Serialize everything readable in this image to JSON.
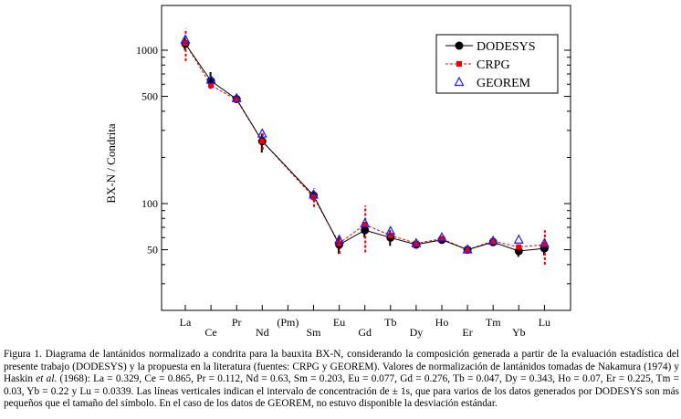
{
  "chart_data": {
    "type": "line",
    "ylabel": "BX-N / Condrita",
    "yscale": "log",
    "ylim": [
      20,
      2000
    ],
    "yticks": [
      {
        "value": 1000,
        "label": "1000"
      },
      {
        "value": 500,
        "label": "500"
      },
      {
        "value": 100,
        "label": "100"
      },
      {
        "value": 50,
        "label": "50"
      }
    ],
    "categories": [
      "La",
      "Ce",
      "Pr",
      "Nd",
      "(Pm)",
      "Sm",
      "Eu",
      "Gd",
      "Tb",
      "Dy",
      "Ho",
      "Er",
      "Tm",
      "Yb",
      "Lu"
    ],
    "legend_position": "top-right",
    "series": [
      {
        "name": "DODESYS",
        "style": "solid line, black filled circles",
        "color": "#000000",
        "values": [
          1100,
          630,
          480,
          255,
          null,
          113,
          54,
          67,
          60,
          54,
          58,
          50,
          56,
          49,
          51
        ],
        "err_low": [
          1000,
          560,
          455,
          215,
          null,
          105,
          47,
          60,
          53,
          null,
          null,
          null,
          null,
          45,
          46
        ],
        "err_high": [
          1200,
          720,
          505,
          285,
          null,
          121,
          61,
          74,
          67,
          null,
          null,
          null,
          null,
          53,
          56
        ]
      },
      {
        "name": "CRPG",
        "style": "dashed red line, red filled squares",
        "color": "#ee0000",
        "values": [
          1110,
          590,
          475,
          255,
          null,
          110,
          55,
          73,
          62,
          55,
          59,
          50,
          57,
          52,
          54
        ],
        "err_low": [
          850,
          null,
          null,
          225,
          null,
          95,
          47,
          48,
          null,
          null,
          null,
          null,
          null,
          null,
          40
        ],
        "err_high": [
          1380,
          null,
          null,
          290,
          null,
          126,
          62,
          97,
          null,
          null,
          null,
          null,
          null,
          null,
          67
        ]
      },
      {
        "name": "GEOREM",
        "style": "blue open triangles",
        "color": "#1a1aff",
        "values": [
          1170,
          640,
          485,
          285,
          null,
          114,
          58,
          74,
          66,
          55,
          60,
          50,
          57,
          58,
          55
        ]
      }
    ]
  },
  "caption": {
    "part1": "Figura 1. Diagrama de lantánidos normalizado a condrita para la bauxita BX-N, considerando la composición generada a partir de la evaluación estadística del presente trabajo (DODESYS) y la propuesta en la literatura (fuentes: CRPG y GEOREM). Valores de normalización de lantánidos tomadas de Nakamura (1974) y Haskin ",
    "italic": "et al.",
    "part2": " (1968): La = 0.329, Ce = 0.865, Pr = 0.112, Nd = 0.63, Sm = 0.203, Eu = 0.077, Gd = 0.276, Tb = 0.047, Dy = 0.343, Ho = 0.07, Er = 0.225, Tm = 0.03, Yb = 0.22 y Lu = 0.0339. Las líneas verticales indican el intervalo de concentración de ± 1s, que para varios de los datos generados por DODESYS son más pequeños que el tamaño del símbolo. En el caso de los datos de GEOREM, no estuvo disponible la desviación estándar."
  }
}
